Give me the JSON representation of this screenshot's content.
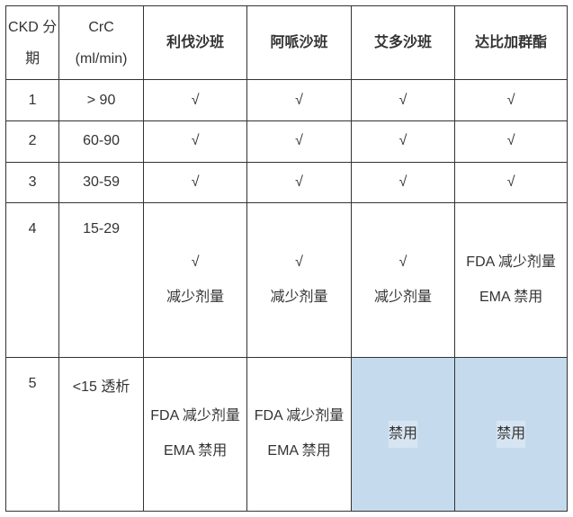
{
  "table": {
    "type": "table",
    "background_color": "#ffffff",
    "border_color": "#333333",
    "text_color": "#333333",
    "highlight_bg": "#c5dbed",
    "font_size": 16,
    "columns": [
      {
        "label": "CKD 分期",
        "bold": false,
        "width_pct": 9.5
      },
      {
        "label": "CrC (ml/min)",
        "bold": false,
        "width_pct": 15
      },
      {
        "label": "利伐沙班",
        "bold": true,
        "width_pct": 18.5
      },
      {
        "label": "阿哌沙班",
        "bold": true,
        "width_pct": 18.5
      },
      {
        "label": "艾多沙班",
        "bold": true,
        "width_pct": 18.5
      },
      {
        "label": "达比加群酯",
        "bold": true,
        "width_pct": 20
      }
    ],
    "rows": [
      {
        "ckd": "1",
        "crc": "> 90",
        "cells": [
          {
            "text": "√",
            "highlight": false
          },
          {
            "text": "√",
            "highlight": false
          },
          {
            "text": "√",
            "highlight": false
          },
          {
            "text": "√",
            "highlight": false
          }
        ]
      },
      {
        "ckd": "2",
        "crc": "60-90",
        "cells": [
          {
            "text": "√",
            "highlight": false
          },
          {
            "text": "√",
            "highlight": false
          },
          {
            "text": "√",
            "highlight": false
          },
          {
            "text": "√",
            "highlight": false
          }
        ]
      },
      {
        "ckd": "3",
        "crc": "30-59",
        "cells": [
          {
            "text": "√",
            "highlight": false
          },
          {
            "text": "√",
            "highlight": false
          },
          {
            "text": "√",
            "highlight": false
          },
          {
            "text": "√",
            "highlight": false
          }
        ]
      },
      {
        "ckd": "4",
        "crc": "15-29",
        "cells": [
          {
            "text": "√\n减少剂量",
            "highlight": false
          },
          {
            "text": "√\n减少剂量",
            "highlight": false
          },
          {
            "text": "√\n减少剂量",
            "highlight": false
          },
          {
            "text": "FDA 减少剂量\nEMA 禁用",
            "highlight": false
          }
        ]
      },
      {
        "ckd": "5",
        "crc": "<15 透析",
        "cells": [
          {
            "text": "FDA 减少剂量\nEMA 禁用",
            "highlight": false
          },
          {
            "text": "FDA 减少剂量\nEMA 禁用",
            "highlight": false
          },
          {
            "text": "禁用",
            "highlight": true
          },
          {
            "text": "禁用",
            "highlight": true
          }
        ]
      }
    ]
  }
}
